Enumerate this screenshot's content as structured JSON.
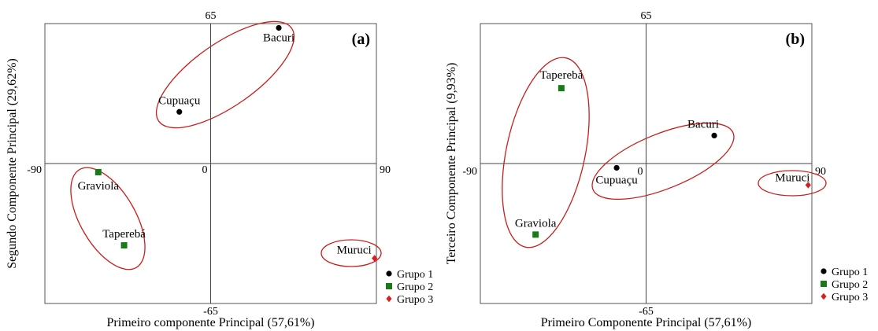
{
  "chart_data": [
    {
      "type": "scatter",
      "panel_label": "(a)",
      "xlabel": "Primeiro componente Principal (57,61%)",
      "ylabel": "Segundo Componente Principal (29,62%)",
      "xlim": [
        -90,
        90
      ],
      "ylim": [
        -65,
        65
      ],
      "tick_labels": {
        "x_min": "-90",
        "x_max": "90",
        "origin": "0",
        "y_max": "65",
        "y_min": "-65"
      },
      "points": [
        {
          "label": "Bacuri",
          "group": "Grupo 1",
          "x": 37,
          "y": 63
        },
        {
          "label": "Cupuaçu",
          "group": "Grupo 1",
          "x": -17,
          "y": 24
        },
        {
          "label": "Graviola",
          "group": "Grupo 2",
          "x": -61,
          "y": -4
        },
        {
          "label": "Taperebá",
          "group": "Grupo 2",
          "x": -47,
          "y": -38
        },
        {
          "label": "Muruci",
          "group": "Grupo 3",
          "x": 89,
          "y": -44
        }
      ],
      "grid": false
    },
    {
      "type": "scatter",
      "panel_label": "(b)",
      "xlabel": "Primeiro Componente Principal (57,61%)",
      "ylabel": "Terceiro Componente Principal (9,93%)",
      "xlim": [
        -90,
        90
      ],
      "ylim": [
        -65,
        65
      ],
      "tick_labels": {
        "x_min": "-90",
        "x_max": "90",
        "origin": "0",
        "y_max": "65",
        "y_min": "-65"
      },
      "points": [
        {
          "label": "Taperebá",
          "group": "Grupo 2",
          "x": -46,
          "y": 35
        },
        {
          "label": "Bacuri",
          "group": "Grupo 1",
          "x": 37,
          "y": 13
        },
        {
          "label": "Cupuaçu",
          "group": "Grupo 1",
          "x": -16,
          "y": -2
        },
        {
          "label": "Graviola",
          "group": "Grupo 2",
          "x": -60,
          "y": -33
        },
        {
          "label": "Muruci",
          "group": "Grupo 3",
          "x": 88,
          "y": -10
        }
      ],
      "grid": false
    }
  ],
  "legend": {
    "placement": "right",
    "items": [
      {
        "label": "Grupo 1",
        "marker": "circle",
        "color": "#000000"
      },
      {
        "label": "Grupo 2",
        "marker": "square",
        "color": "#1a7a1a"
      },
      {
        "label": "Grupo 3",
        "marker": "diamond",
        "color": "#d42020"
      }
    ]
  },
  "ellipse_color": "#c81e1e"
}
